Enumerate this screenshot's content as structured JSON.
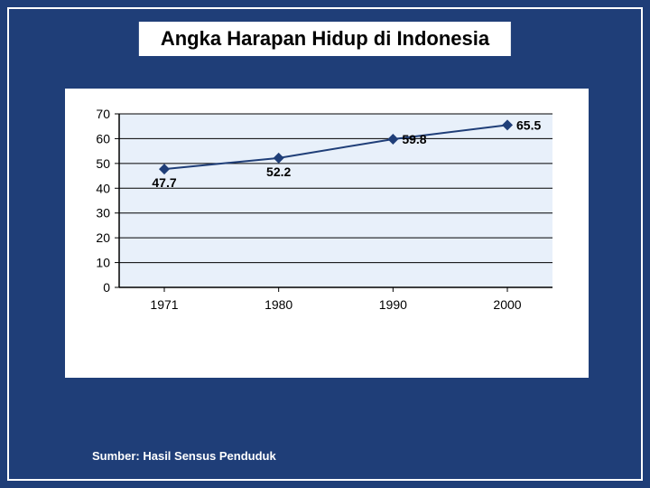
{
  "slide": {
    "title": "Angka Harapan Hidup di Indonesia",
    "source": "Sumber: Hasil Sensus Penduduk",
    "bg_color": "#1f3e78",
    "title_bg": "#ffffff",
    "title_color": "#000000",
    "title_fontsize": 22,
    "source_color": "#ffffff",
    "source_fontsize": 13
  },
  "chart": {
    "type": "line",
    "plot_bg": "#e8f0fa",
    "outer_bg": "#ffffff",
    "axis_color": "#000000",
    "grid_color": "#000000",
    "line_color": "#1f3e78",
    "marker_color": "#1f3e78",
    "marker_style": "diamond",
    "marker_size": 6,
    "line_width": 2,
    "yaxis": {
      "min": 0,
      "max": 70,
      "step": 10,
      "ticks": [
        0,
        10,
        20,
        30,
        40,
        50,
        60,
        70
      ],
      "fontsize": 14
    },
    "xaxis": {
      "labels": [
        "1971",
        "1980",
        "1990",
        "2000"
      ],
      "fontsize": 14
    },
    "series": [
      {
        "x": "1971",
        "y": 47.7,
        "label": "47.7",
        "label_pos": "below"
      },
      {
        "x": "1980",
        "y": 52.2,
        "label": "52.2",
        "label_pos": "below"
      },
      {
        "x": "1990",
        "y": 59.8,
        "label": "59.8",
        "label_pos": "right"
      },
      {
        "x": "2000",
        "y": 65.5,
        "label": "65.5",
        "label_pos": "right"
      }
    ],
    "label_fontsize": 14
  }
}
